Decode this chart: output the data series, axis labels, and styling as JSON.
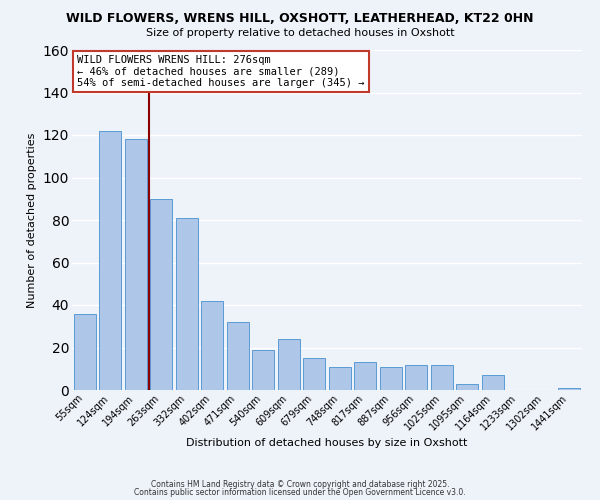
{
  "title": "WILD FLOWERS, WRENS HILL, OXSHOTT, LEATHERHEAD, KT22 0HN",
  "subtitle": "Size of property relative to detached houses in Oxshott",
  "xlabel": "Distribution of detached houses by size in Oxshott",
  "ylabel": "Number of detached properties",
  "bar_labels": [
    "55sqm",
    "124sqm",
    "194sqm",
    "263sqm",
    "332sqm",
    "402sqm",
    "471sqm",
    "540sqm",
    "609sqm",
    "679sqm",
    "748sqm",
    "817sqm",
    "887sqm",
    "956sqm",
    "1025sqm",
    "1095sqm",
    "1164sqm",
    "1233sqm",
    "1302sqm",
    "1441sqm"
  ],
  "bar_values": [
    36,
    122,
    118,
    90,
    81,
    42,
    32,
    19,
    24,
    15,
    11,
    13,
    11,
    12,
    12,
    3,
    7,
    0,
    0,
    1
  ],
  "bar_color": "#aec6e8",
  "bar_edge_color": "#5b9bd5",
  "bg_color": "#eef2f9",
  "vline_x": 2.5,
  "vline_color": "#8b0000",
  "annotation_title": "WILD FLOWERS WRENS HILL: 276sqm",
  "annotation_line1": "← 46% of detached houses are smaller (289)",
  "annotation_line2": "54% of semi-detached houses are larger (345) →",
  "annotation_box_color": "#ffffff",
  "annotation_box_edge": "#c0392b",
  "footer1": "Contains HM Land Registry data © Crown copyright and database right 2025.",
  "footer2": "Contains public sector information licensed under the Open Government Licence v3.0.",
  "ylim": [
    0,
    160
  ],
  "yticks": [
    0,
    20,
    40,
    60,
    80,
    100,
    120,
    140,
    160
  ]
}
